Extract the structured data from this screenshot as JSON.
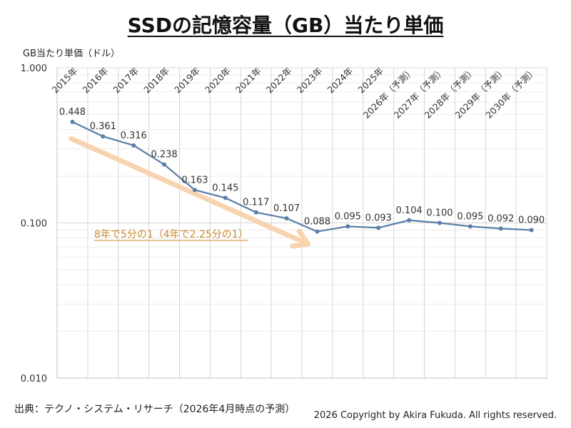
{
  "header": {
    "title": "SSDの記憶容量（GB）当たり単価"
  },
  "footer": {
    "source": "出典：テクノ・システム・リサーチ（2026年4月時点の予測）",
    "copyright": "2026 Copyright by Akira Fukuda.  All rights reserved."
  },
  "chart_data": {
    "type": "line",
    "title": "SSDの記憶容量（GB）当たり単価",
    "ylabel": "GB当たり単価（ドル）",
    "xlabel": "",
    "yscale": "log",
    "ylim": [
      0.01,
      1.0
    ],
    "yticks": [
      "1.000",
      "0.100",
      "0.010"
    ],
    "grid": true,
    "categories": [
      "2015年",
      "2016年",
      "2017年",
      "2018年",
      "2019年",
      "2020年",
      "2021年",
      "2022年",
      "2023年",
      "2024年",
      "2025年",
      "2026年（予測）",
      "2027年（予測）",
      "2028年（予測）",
      "2029年（予測）",
      "2030年（予測）"
    ],
    "series": [
      {
        "color": "#5a7fa8",
        "values": [
          0.448,
          0.361,
          0.316,
          0.238,
          0.163,
          0.145,
          0.117,
          0.107,
          0.088,
          0.095,
          0.093,
          0.104,
          0.1,
          0.095,
          0.092,
          0.09
        ],
        "labels": [
          "0.448",
          "0.361",
          "0.316",
          "0.238",
          "0.163",
          "0.145",
          "0.117",
          "0.107",
          "0.088",
          "0.095",
          "0.093",
          "0.104",
          "0.100",
          "0.095",
          "0.092",
          "0.090"
        ]
      }
    ],
    "annotation": {
      "text": "8年で5分の1（4年で2.25分の1）",
      "color": "#c98a2e",
      "arrow_color": "#f8d3b0"
    }
  }
}
